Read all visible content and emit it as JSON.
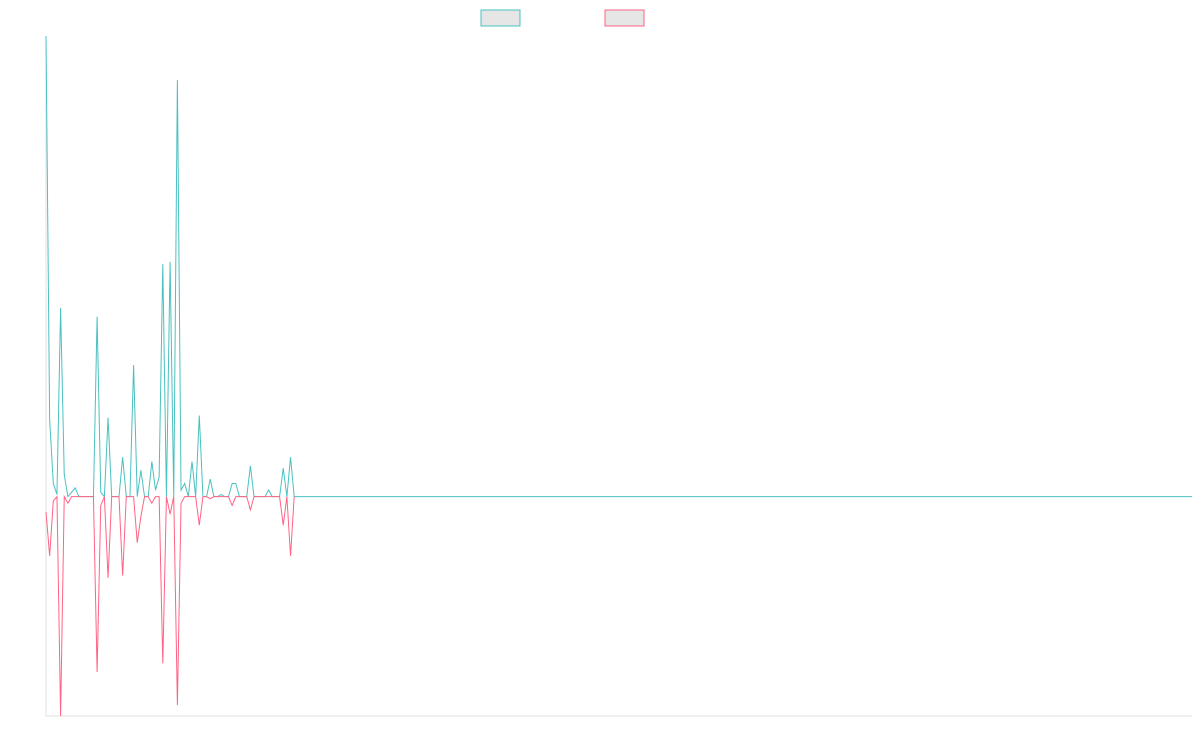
{
  "chart_data": {
    "type": "line",
    "x": [
      0,
      1,
      2,
      3,
      4,
      5,
      6,
      7,
      8,
      9,
      10,
      11,
      12,
      13,
      14,
      15,
      16,
      17,
      18,
      19,
      20,
      21,
      22,
      23,
      24,
      25,
      26,
      27,
      28,
      29,
      30,
      31,
      32,
      33,
      34,
      35,
      36,
      37,
      38,
      39,
      40,
      41,
      42,
      43,
      44,
      45,
      46,
      47,
      48,
      49,
      50,
      51,
      52,
      53,
      54,
      55,
      56,
      57,
      58,
      59,
      60,
      61,
      62,
      63,
      64,
      65,
      66,
      67,
      68,
      314
    ],
    "series": [
      {
        "color": "#4bc0c0",
        "values": [
          210,
          35,
          6,
          1,
          86,
          10,
          0,
          2,
          4,
          0,
          0,
          0,
          0,
          0,
          82,
          2,
          0,
          36,
          0,
          0,
          0,
          18,
          0,
          0,
          60,
          0,
          12,
          0,
          0,
          16,
          3,
          9,
          106,
          0,
          107,
          0,
          190,
          3,
          6,
          0,
          16,
          0,
          37,
          0,
          0,
          8,
          0,
          0,
          1,
          0,
          0,
          6,
          6,
          0,
          0,
          0,
          14,
          0,
          0,
          0,
          0,
          3,
          0,
          0,
          0,
          13,
          0,
          18,
          0,
          0
        ]
      },
      {
        "color": "#ff6384",
        "values": [
          -7,
          -27,
          -2,
          0,
          -100,
          0,
          -3,
          0,
          0,
          0,
          0,
          0,
          0,
          0,
          -80,
          -4,
          0,
          -37,
          0,
          0,
          0,
          -36,
          0,
          0,
          0,
          -21,
          -9,
          0,
          0,
          -3,
          0,
          0,
          -76,
          0,
          -8,
          0,
          -95,
          -3,
          0,
          0,
          0,
          0,
          -13,
          0,
          0,
          -1,
          0,
          0,
          0,
          0,
          0,
          -4,
          0,
          0,
          0,
          0,
          -6,
          0,
          0,
          0,
          0,
          0,
          0,
          0,
          0,
          -13,
          0,
          -27,
          0,
          null
        ]
      }
    ],
    "xlim": [
      0,
      314
    ],
    "ylim": [
      -100,
      210
    ],
    "legend": "top"
  }
}
